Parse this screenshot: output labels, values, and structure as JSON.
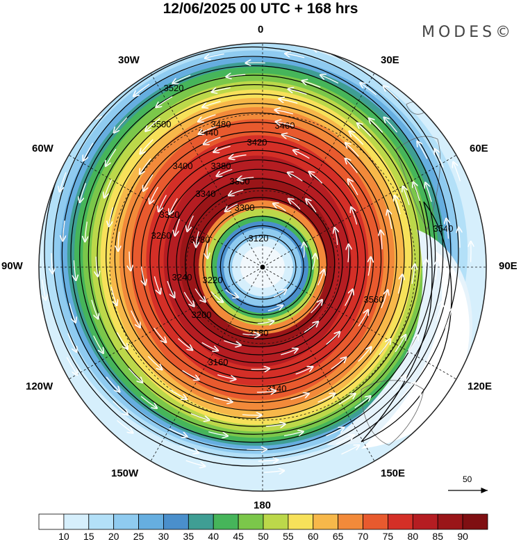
{
  "title": "12/06/2025  00 UTC  + 168 hrs",
  "brand": "MODES©",
  "longitude_labels": {
    "top": "0",
    "top_right": "30E",
    "right_upper": "60E",
    "right": "90E",
    "right_lower": "120E",
    "bottom_right": "150E",
    "bottom": "180",
    "bottom_left": "150W",
    "left_lower": "120W",
    "left": "90W",
    "left_upper": "60W",
    "top_left": "30W"
  },
  "reference_vector": {
    "label": "50"
  },
  "colorbar": {
    "labels": [
      "10",
      "15",
      "20",
      "25",
      "30",
      "35",
      "40",
      "45",
      "50",
      "55",
      "60",
      "65",
      "70",
      "75",
      "80",
      "85",
      "90"
    ],
    "colors": [
      "#ffffff",
      "#d6effc",
      "#b3e0f8",
      "#8fcbf0",
      "#66aee0",
      "#4a8fcc",
      "#3f9e94",
      "#46b55a",
      "#7bc74a",
      "#bcd84a",
      "#f7e15a",
      "#f7b84a",
      "#f28a3a",
      "#e85a2e",
      "#d42f27",
      "#b51d22",
      "#9a1518",
      "#7f0f12"
    ]
  },
  "contour_labels": [
    "3520",
    "3500",
    "3480",
    "3460",
    "3440",
    "3420",
    "3400",
    "3380",
    "3360",
    "3340",
    "3320",
    "3300",
    "3280",
    "3260",
    "3240",
    "3220",
    "3200",
    "3180",
    "3160",
    "3140",
    "3120",
    "3540",
    "3560"
  ],
  "map": {
    "projection": "south-polar-stereographic",
    "field": "wind speed shaded, geopotential height contours, streamlines"
  }
}
